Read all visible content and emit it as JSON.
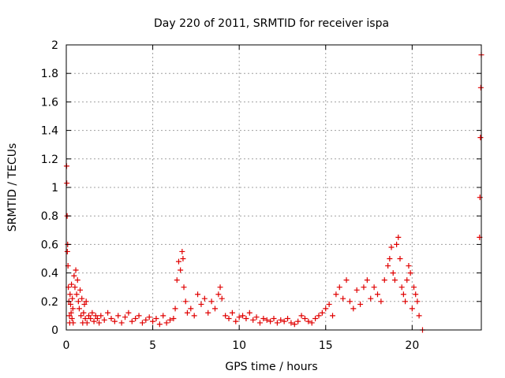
{
  "chart_data": {
    "type": "scatter",
    "title": "Day 220 of 2011, SRMTID for receiver ispa",
    "xlabel": "GPS time / hours",
    "ylabel": "SRMTID / TECUs",
    "xlim": [
      0,
      24
    ],
    "ylim": [
      0,
      2
    ],
    "xticks": [
      0,
      5,
      10,
      15,
      20
    ],
    "xtick_labels": [
      "0",
      "5",
      "10",
      "15",
      "20"
    ],
    "yticks": [
      0,
      0.2,
      0.4,
      0.6,
      0.8,
      1,
      1.2,
      1.4,
      1.6,
      1.8,
      2
    ],
    "ytick_labels": [
      "0",
      "0.2",
      "0.4",
      "0.6",
      "0.8",
      "1",
      "1.2",
      "1.4",
      "1.6",
      "1.8",
      "2"
    ],
    "grid": true,
    "legend": false,
    "marker": "+",
    "marker_color": "#e00000",
    "series": [
      {
        "x": [
          0.02,
          0.03,
          0.05,
          0.06,
          0.08,
          0.1,
          0.12,
          0.15,
          0.18,
          0.2,
          0.22,
          0.25,
          0.28,
          0.3,
          0.33,
          0.35,
          0.38,
          0.4,
          0.45,
          0.5,
          0.55,
          0.6,
          0.65,
          0.7,
          0.75,
          0.8,
          0.85,
          0.9,
          0.95,
          1.0,
          1.05,
          1.1,
          1.15,
          1.2,
          1.3,
          1.4,
          1.5,
          1.6,
          1.7,
          1.8,
          1.9,
          2.0,
          2.2,
          2.4,
          2.6,
          2.8,
          3.0,
          3.2,
          3.4,
          3.6,
          3.8,
          4.0,
          4.2,
          4.4,
          4.6,
          4.8,
          5.0,
          5.2,
          5.4,
          5.6,
          5.8,
          6.0,
          6.2,
          6.3,
          6.4,
          6.5,
          6.6,
          6.7,
          6.75,
          6.8,
          6.9,
          7.0,
          7.2,
          7.4,
          7.6,
          7.8,
          8.0,
          8.2,
          8.4,
          8.6,
          8.8,
          8.9,
          9.0,
          9.2,
          9.4,
          9.6,
          9.8,
          10.0,
          10.2,
          10.4,
          10.6,
          10.8,
          11.0,
          11.2,
          11.4,
          11.6,
          11.8,
          12.0,
          12.2,
          12.4,
          12.6,
          12.8,
          13.0,
          13.2,
          13.4,
          13.6,
          13.8,
          14.0,
          14.2,
          14.4,
          14.6,
          14.8,
          15.0,
          15.2,
          15.4,
          15.6,
          15.8,
          16.0,
          16.2,
          16.4,
          16.6,
          16.8,
          17.0,
          17.2,
          17.4,
          17.6,
          17.8,
          18.0,
          18.2,
          18.4,
          18.6,
          18.7,
          18.8,
          18.9,
          19.0,
          19.1,
          19.2,
          19.3,
          19.4,
          19.5,
          19.6,
          19.7,
          19.8,
          19.9,
          20.0,
          20.1,
          20.2,
          20.3,
          20.4,
          20.6,
          23.9,
          23.92,
          23.95,
          23.97,
          24.0
        ],
        "y": [
          1.15,
          1.03,
          0.8,
          0.55,
          0.6,
          0.45,
          0.3,
          0.2,
          0.1,
          0.05,
          0.25,
          0.18,
          0.12,
          0.32,
          0.08,
          0.22,
          0.15,
          0.05,
          0.38,
          0.3,
          0.42,
          0.25,
          0.35,
          0.2,
          0.15,
          0.28,
          0.1,
          0.22,
          0.05,
          0.12,
          0.18,
          0.08,
          0.2,
          0.05,
          0.1,
          0.08,
          0.12,
          0.06,
          0.1,
          0.08,
          0.05,
          0.1,
          0.07,
          0.12,
          0.08,
          0.06,
          0.1,
          0.05,
          0.09,
          0.12,
          0.06,
          0.08,
          0.1,
          0.05,
          0.07,
          0.09,
          0.06,
          0.08,
          0.04,
          0.1,
          0.05,
          0.07,
          0.08,
          0.15,
          0.35,
          0.48,
          0.42,
          0.55,
          0.5,
          0.3,
          0.2,
          0.12,
          0.15,
          0.1,
          0.25,
          0.18,
          0.22,
          0.12,
          0.2,
          0.15,
          0.25,
          0.3,
          0.22,
          0.1,
          0.08,
          0.12,
          0.06,
          0.09,
          0.1,
          0.08,
          0.12,
          0.07,
          0.09,
          0.05,
          0.08,
          0.07,
          0.06,
          0.08,
          0.05,
          0.07,
          0.06,
          0.08,
          0.05,
          0.04,
          0.06,
          0.1,
          0.08,
          0.06,
          0.05,
          0.08,
          0.1,
          0.12,
          0.15,
          0.18,
          0.1,
          0.25,
          0.3,
          0.22,
          0.35,
          0.2,
          0.15,
          0.28,
          0.18,
          0.3,
          0.35,
          0.22,
          0.3,
          0.25,
          0.2,
          0.35,
          0.45,
          0.5,
          0.58,
          0.4,
          0.35,
          0.6,
          0.65,
          0.5,
          0.3,
          0.25,
          0.2,
          0.35,
          0.45,
          0.4,
          0.15,
          0.3,
          0.25,
          0.2,
          0.1,
          0.0,
          0.65,
          0.93,
          1.35,
          1.7,
          1.93
        ]
      }
    ]
  }
}
